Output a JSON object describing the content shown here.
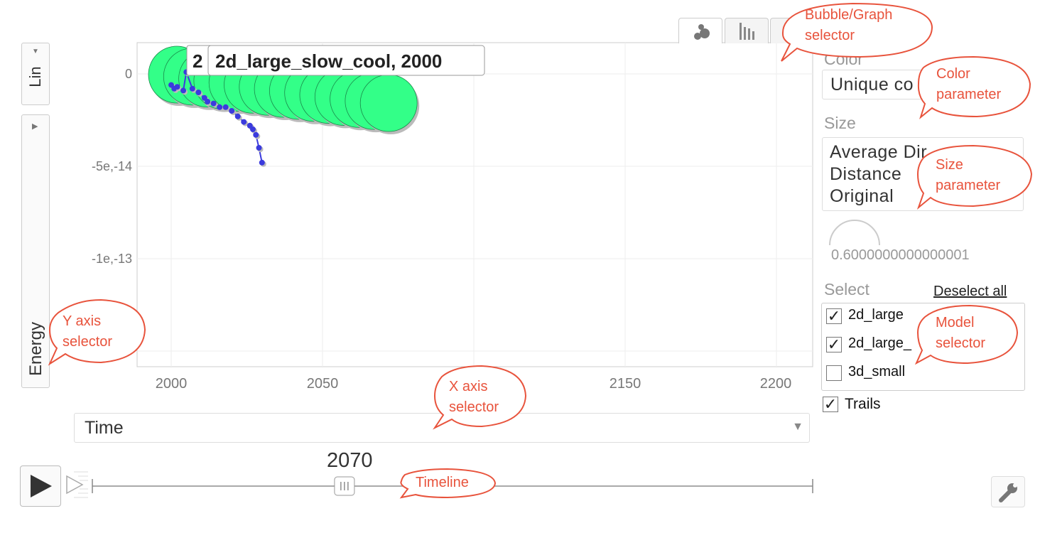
{
  "chart": {
    "tooltip_prefix": "2",
    "tooltip": "2d_large_slow_cool, 2000",
    "y_ticks": [
      "0",
      "-5e,-14",
      "-1e,-13"
    ],
    "x_ticks": [
      "2000",
      "2050",
      "2150",
      "2200"
    ]
  },
  "chart_data": {
    "type": "scatter",
    "title": "",
    "xlabel": "Time",
    "ylabel": "Energy",
    "xlim": [
      1990,
      2210
    ],
    "ylim": [
      -1.5e-13,
      1.5e-14
    ],
    "series": [
      {
        "name": "2d_large_slow_cool",
        "x": [
          2000,
          2001,
          2002,
          2004,
          2005,
          2007,
          2009,
          2011,
          2012,
          2014,
          2016,
          2018,
          2020,
          2022,
          2024,
          2026,
          2027,
          2028,
          2029,
          2030
        ],
        "y": [
          -6e-15,
          -8e-15,
          -7e-15,
          -9e-15,
          1e-15,
          -8e-15,
          -1e-14,
          -1.3e-14,
          -1.5e-14,
          -1.6e-14,
          -1.8e-14,
          -1.8e-14,
          -2e-14,
          -2.3e-14,
          -2.6e-14,
          -2.8e-14,
          -3e-14,
          -3.3e-14,
          -4e-14,
          -4.8e-14
        ]
      }
    ],
    "bubble_x": [
      2000,
      2005,
      2010,
      2015,
      2020,
      2025,
      2030,
      2035,
      2040,
      2045,
      2050,
      2055,
      2060,
      2065,
      2070
    ],
    "grid": true,
    "bubble_color": "#33ff88",
    "trail_color": "#3b3bdd"
  },
  "left": {
    "scale_label": "Lin",
    "yaxis_label": "Energy"
  },
  "right": {
    "color_label": "Color",
    "color_value": "Unique co",
    "size_label": "Size",
    "size_lines": [
      "Average Dir",
      "Distance",
      "Original"
    ],
    "opacity_value": "0.6000000000000001",
    "select_label": "Select",
    "deselect": "Deselect all",
    "models": [
      {
        "label": "2d_large",
        "checked": true
      },
      {
        "label": "2d_large_",
        "checked": true
      },
      {
        "label": "3d_small",
        "checked": false
      }
    ],
    "trails_label": "Trails",
    "trails_checked": true
  },
  "xaxis": {
    "value": "Time"
  },
  "timeline": {
    "year": "2070",
    "position": 0.35
  },
  "callouts": {
    "bubble_graph": [
      "Bubble/Graph",
      "selector"
    ],
    "color": [
      "Color",
      "parameter"
    ],
    "size": [
      "Size",
      "parameter"
    ],
    "model": [
      "Model",
      "selector"
    ],
    "yaxis": [
      "Y axis",
      "selector"
    ],
    "xaxis": [
      "X axis",
      "selector"
    ],
    "timeline": [
      "Timeline"
    ]
  },
  "colors": {
    "accent": "#e8533c",
    "bubble": "#33ff88",
    "trail": "#3b3bdd"
  },
  "icons": {
    "play": "play-icon",
    "step": "step-icon",
    "wrench": "wrench-icon",
    "bubble_tab": "bubble-chart-icon",
    "bar_tab": "bar-chart-icon"
  }
}
